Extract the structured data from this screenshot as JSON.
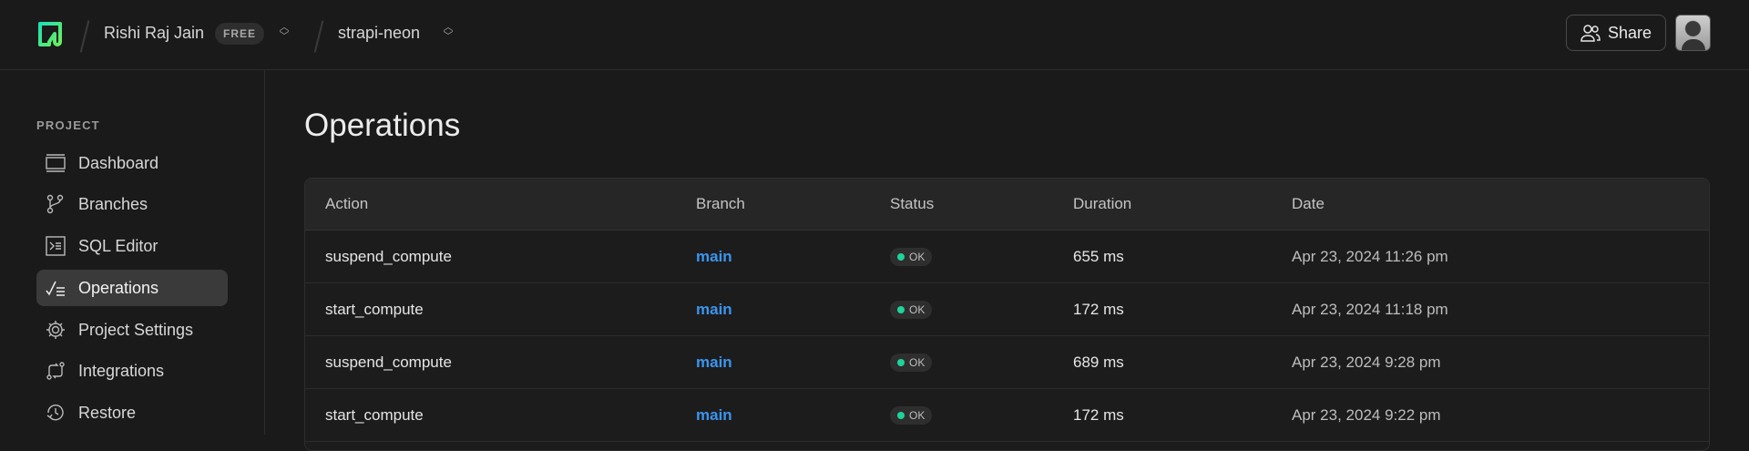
{
  "header": {
    "user": "Rishi Raj Jain",
    "plan_badge": "FREE",
    "project": "strapi-neon",
    "share_label": "Share"
  },
  "sidebar": {
    "section": "PROJECT",
    "items": [
      {
        "label": "Dashboard",
        "icon": "dashboard-icon"
      },
      {
        "label": "Branches",
        "icon": "branch-icon"
      },
      {
        "label": "SQL Editor",
        "icon": "terminal-icon"
      },
      {
        "label": "Operations",
        "icon": "operations-icon",
        "active": true
      },
      {
        "label": "Project Settings",
        "icon": "gear-icon"
      },
      {
        "label": "Integrations",
        "icon": "integrations-icon"
      },
      {
        "label": "Restore",
        "icon": "history-icon"
      }
    ]
  },
  "main": {
    "title": "Operations",
    "columns": [
      "Action",
      "Branch",
      "Status",
      "Duration",
      "Date"
    ],
    "rows": [
      {
        "action": "suspend_compute",
        "branch": "main",
        "status": "OK",
        "duration": "655 ms",
        "date": "Apr 23, 2024 11:26 pm"
      },
      {
        "action": "start_compute",
        "branch": "main",
        "status": "OK",
        "duration": "172 ms",
        "date": "Apr 23, 2024 11:18 pm"
      },
      {
        "action": "suspend_compute",
        "branch": "main",
        "status": "OK",
        "duration": "689 ms",
        "date": "Apr 23, 2024 9:28 pm"
      },
      {
        "action": "start_compute",
        "branch": "main",
        "status": "OK",
        "duration": "172 ms",
        "date": "Apr 23, 2024 9:22 pm"
      }
    ]
  },
  "colors": {
    "accent": "#3b95ef",
    "ok": "#1ed39b",
    "logo_start": "#1ee0b4",
    "logo_end": "#6bf05a"
  }
}
